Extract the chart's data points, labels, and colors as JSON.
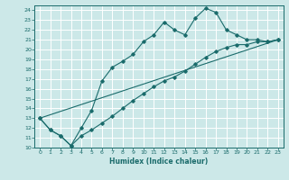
{
  "xlabel": "Humidex (Indice chaleur)",
  "background_color": "#cce8e8",
  "line_color": "#1a6b6b",
  "xlim": [
    -0.5,
    23.5
  ],
  "ylim": [
    10,
    24.5
  ],
  "xticks": [
    0,
    1,
    2,
    3,
    4,
    5,
    6,
    7,
    8,
    9,
    10,
    11,
    12,
    13,
    14,
    15,
    16,
    17,
    18,
    19,
    20,
    21,
    22,
    23
  ],
  "yticks": [
    10,
    11,
    12,
    13,
    14,
    15,
    16,
    17,
    18,
    19,
    20,
    21,
    22,
    23,
    24
  ],
  "line1_x": [
    0,
    1,
    2,
    3,
    4,
    5,
    6,
    7,
    8,
    9,
    10,
    11,
    12,
    13,
    14,
    15,
    16,
    17,
    18,
    19,
    20,
    21,
    22,
    23
  ],
  "line1_y": [
    13.0,
    11.8,
    11.2,
    10.2,
    12.0,
    13.8,
    16.8,
    18.2,
    18.8,
    19.5,
    20.8,
    21.5,
    22.8,
    22.0,
    21.5,
    23.2,
    24.2,
    23.8,
    22.0,
    21.5,
    21.0,
    21.0,
    20.8,
    21.0
  ],
  "line2_x": [
    0,
    1,
    2,
    3,
    4,
    5,
    6,
    7,
    8,
    9,
    10,
    11,
    12,
    13,
    14,
    15,
    16,
    17,
    18,
    19,
    20,
    21,
    22,
    23
  ],
  "line2_y": [
    13.0,
    11.8,
    11.2,
    10.2,
    11.2,
    11.8,
    12.5,
    13.2,
    14.0,
    14.8,
    15.5,
    16.2,
    16.8,
    17.2,
    17.8,
    18.5,
    19.2,
    19.8,
    20.2,
    20.5,
    20.5,
    20.8,
    20.8,
    21.0
  ],
  "line3_x": [
    0,
    23
  ],
  "line3_y": [
    13.0,
    21.0
  ]
}
